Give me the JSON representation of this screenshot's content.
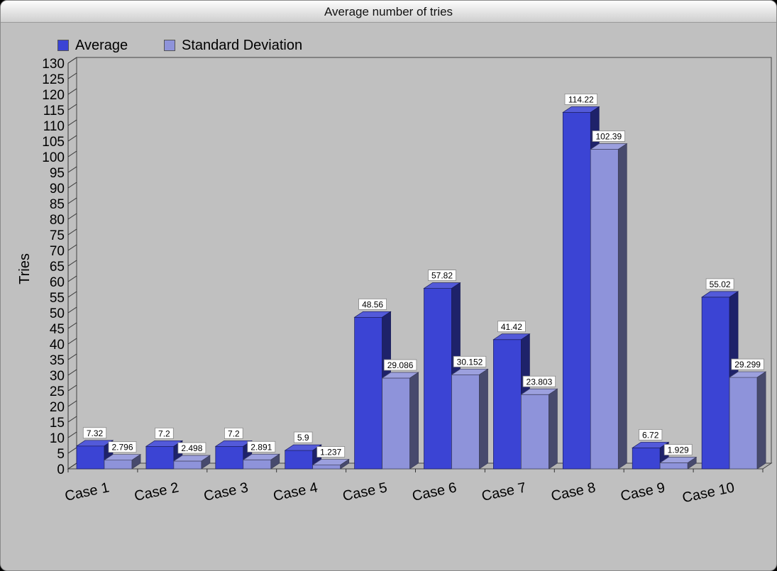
{
  "window": {
    "title": "Average number of tries"
  },
  "colors": {
    "series1": "#3b44d4",
    "series2": "#8e93da",
    "background": "#c0c0c0"
  },
  "chart_data": {
    "type": "bar",
    "title": "Average number of tries",
    "xlabel": "",
    "ylabel": "Tries",
    "ylim": [
      0,
      130
    ],
    "yticks": [
      0,
      5,
      10,
      15,
      20,
      25,
      30,
      35,
      40,
      45,
      50,
      55,
      60,
      65,
      70,
      75,
      80,
      85,
      90,
      95,
      100,
      105,
      110,
      115,
      120,
      125,
      130
    ],
    "categories": [
      "Case 1",
      "Case 2",
      "Case 3",
      "Case 4",
      "Case 5",
      "Case 6",
      "Case 7",
      "Case 8",
      "Case 9",
      "Case 10"
    ],
    "series": [
      {
        "name": "Average",
        "values": [
          7.32,
          7.2,
          7.2,
          5.9,
          48.56,
          57.82,
          41.42,
          114.22,
          6.72,
          55.02
        ],
        "labels": [
          "7.32",
          "7.2",
          "7.2",
          "5.9",
          "48.56",
          "57.82",
          "41.42",
          "114.22",
          "6.72",
          "55.02"
        ]
      },
      {
        "name": "Standard Deviation",
        "values": [
          2.796,
          2.498,
          2.891,
          1.237,
          29.086,
          30.152,
          23.803,
          102.39,
          1.929,
          29.299
        ],
        "labels": [
          "2.796",
          "2.498",
          "2.891",
          "1.237",
          "29.086",
          "30.152",
          "23.803",
          "102.39",
          "1.929",
          "29.299"
        ]
      }
    ],
    "legend": "top-left",
    "grid": false
  }
}
